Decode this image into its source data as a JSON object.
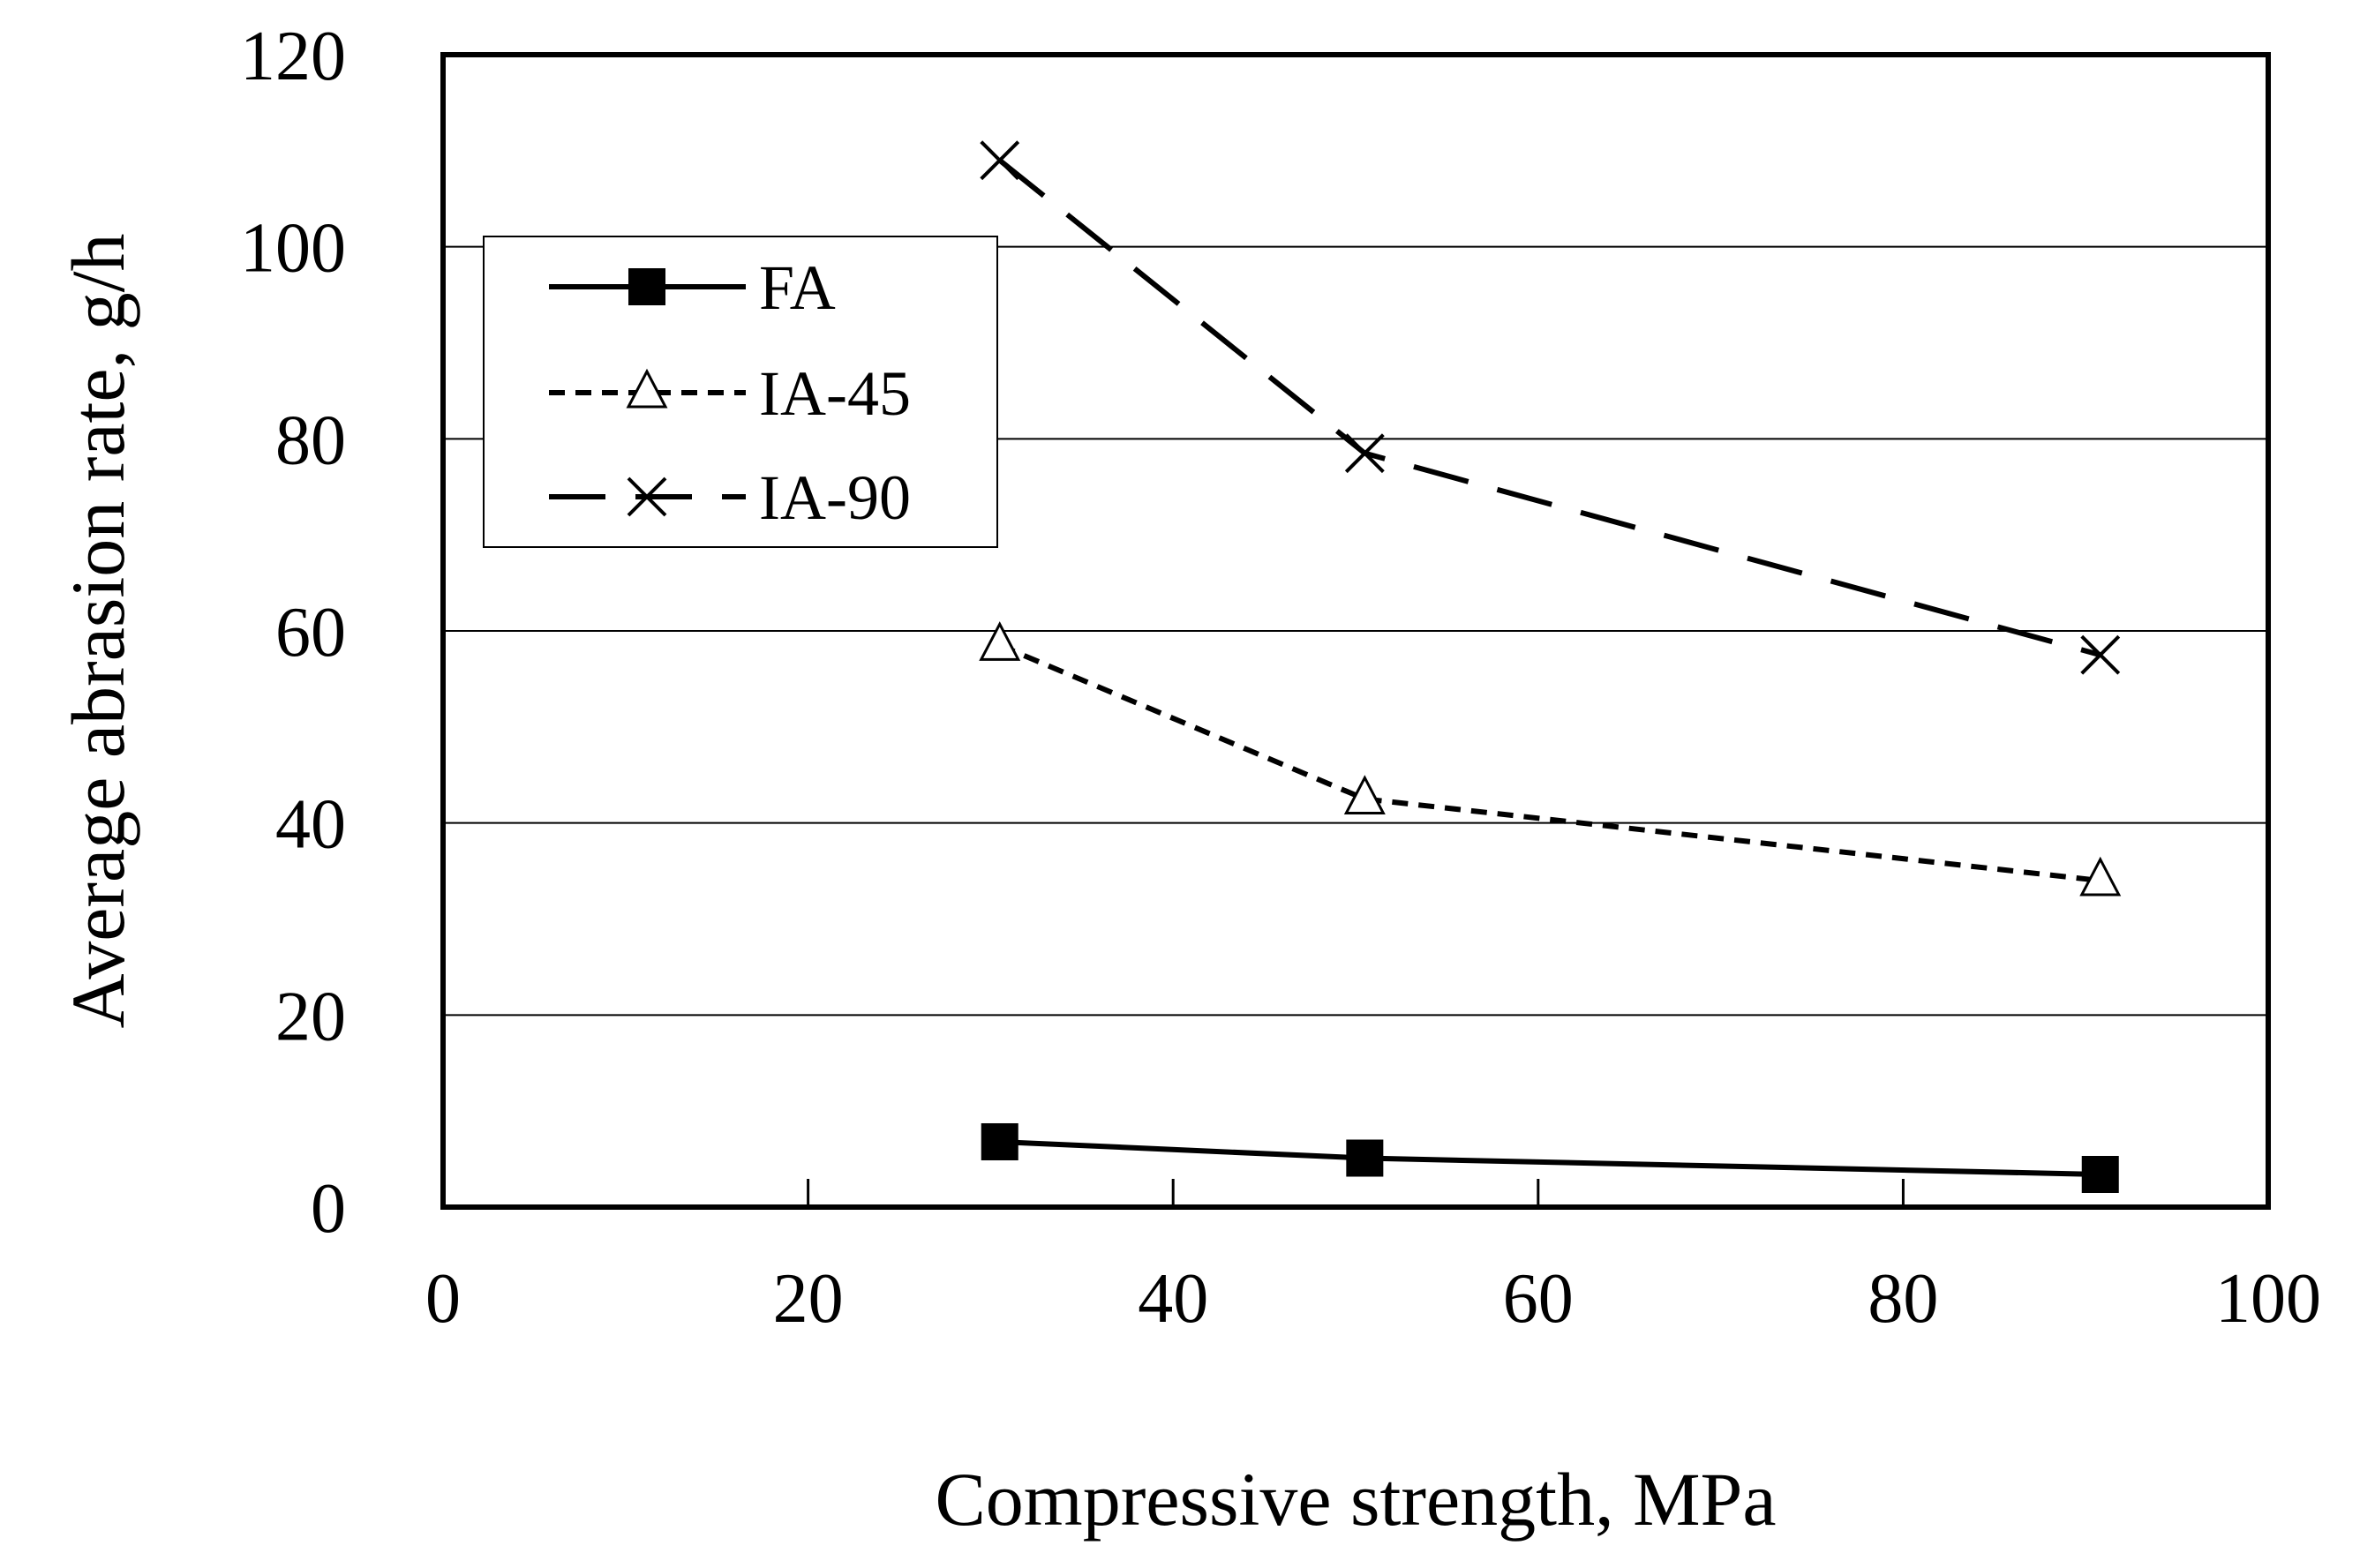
{
  "chart_data": {
    "type": "line",
    "title": "",
    "xlabel": "Compressive strength, MPa",
    "ylabel": "Average abrasion rate, g/h",
    "xlim": [
      0,
      100
    ],
    "ylim": [
      0,
      120
    ],
    "xticks": [
      0,
      20,
      40,
      60,
      80,
      100
    ],
    "yticks": [
      0,
      20,
      40,
      60,
      80,
      100,
      120
    ],
    "xtick_labels": [
      "0",
      "20",
      "40",
      "60",
      "80",
      "100"
    ],
    "ytick_labels": [
      "0",
      "20",
      "40",
      "60",
      "80",
      "100",
      "120"
    ],
    "grid": "horizontal",
    "legend_position": "top-left",
    "series": [
      {
        "name": "FA",
        "marker": "square",
        "line_style": "solid",
        "x": [
          30.5,
          50.5,
          90.8
        ],
        "y": [
          6.8,
          5.1,
          3.4
        ]
      },
      {
        "name": "IA-45",
        "marker": "triangle",
        "line_style": "dotted",
        "x": [
          30.5,
          50.5,
          90.8
        ],
        "y": [
          58.5,
          42.5,
          34.0
        ]
      },
      {
        "name": "IA-90",
        "marker": "x",
        "line_style": "dashed",
        "x": [
          30.5,
          50.5,
          90.8
        ],
        "y": [
          109.0,
          78.5,
          57.5
        ]
      }
    ]
  }
}
